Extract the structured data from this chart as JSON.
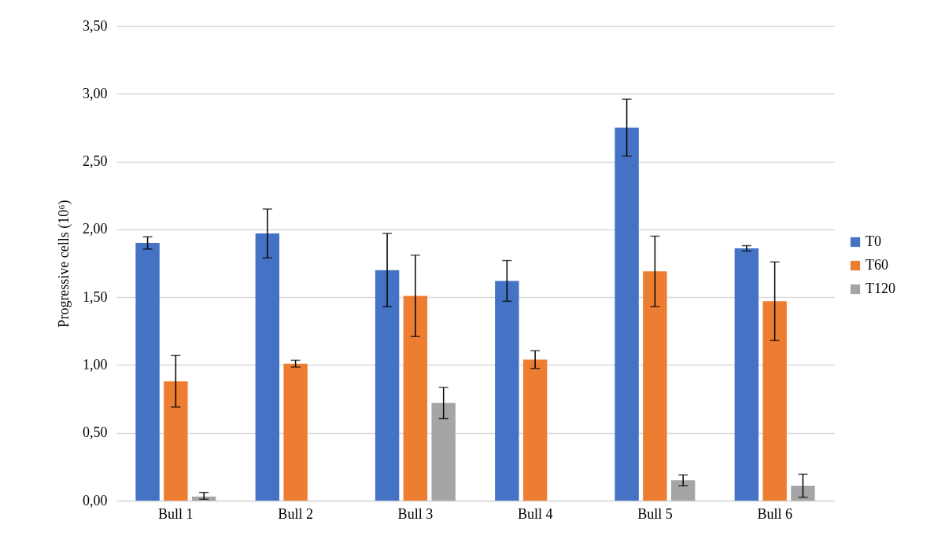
{
  "chart_data": {
    "type": "bar",
    "ylabel": "Progressive cells (10⁶)",
    "categories": [
      "Bull 1",
      "Bull 2",
      "Bull 3",
      "Bull 4",
      "Bull 5",
      "Bull 6"
    ],
    "series": [
      {
        "name": "T0",
        "color": "#4472c4",
        "values": [
          1.9,
          1.97,
          1.7,
          1.62,
          2.75,
          1.86
        ],
        "errors": [
          0.045,
          0.18,
          0.27,
          0.15,
          0.21,
          0.02
        ]
      },
      {
        "name": "T60",
        "color": "#ed7d31",
        "values": [
          0.88,
          1.01,
          1.51,
          1.04,
          1.69,
          1.47
        ],
        "errors": [
          0.19,
          0.025,
          0.3,
          0.065,
          0.26,
          0.29
        ]
      },
      {
        "name": "T120",
        "color": "#a5a5a5",
        "values": [
          0.03,
          null,
          0.72,
          null,
          0.15,
          0.11
        ],
        "errors": [
          [
            0.02,
            0.03
          ],
          null,
          0.115,
          null,
          0.04,
          0.085
        ]
      }
    ],
    "ylim": [
      0,
      3.5
    ],
    "yticks": [
      {
        "value": 0,
        "label": "0,00"
      },
      {
        "value": 0.5,
        "label": "0,50"
      },
      {
        "value": 1,
        "label": "1,00"
      },
      {
        "value": 1.5,
        "label": "1,50"
      },
      {
        "value": 2,
        "label": "2,00"
      },
      {
        "value": 2.5,
        "label": "2,50"
      },
      {
        "value": 3,
        "label": "3,00"
      },
      {
        "value": 3.5,
        "label": "3,50"
      }
    ],
    "grid": "y",
    "legend": "right"
  }
}
